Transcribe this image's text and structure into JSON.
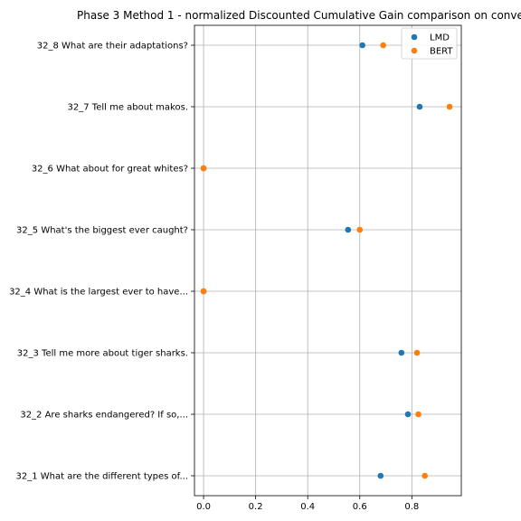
{
  "chart_data": {
    "type": "scatter",
    "title": "Phase 3 Method 1 - normalized Discounted Cumulative Gain comparison on conve",
    "xlabel": "",
    "ylabel": "",
    "categories": [
      "32_1 What are the different types of...",
      "32_2 Are sharks endangered? If so,...",
      "32_3 Tell me more about tiger sharks.",
      "32_4 What is the largest ever to have...",
      "32_5 What's the biggest ever caught?",
      "32_6 What about for great whites?",
      "32_7 Tell me about makos.",
      "32_8 What are their adaptations?"
    ],
    "series": [
      {
        "name": "LMD",
        "color": "#1f77b4",
        "values": [
          0.68,
          0.785,
          0.76,
          0.0,
          0.555,
          0.0,
          0.83,
          0.61
        ]
      },
      {
        "name": "BERT",
        "color": "#ff7f0e",
        "values": [
          0.85,
          0.825,
          0.82,
          0.0,
          0.6,
          0.0,
          0.945,
          0.69
        ]
      }
    ],
    "xlim": [
      -0.035,
      0.99
    ],
    "xticks": [
      0.0,
      0.2,
      0.4,
      0.6,
      0.8
    ],
    "xtick_labels": [
      "0.0",
      "0.2",
      "0.4",
      "0.6",
      "0.8"
    ],
    "grid": true,
    "legend_position": "top-right"
  }
}
